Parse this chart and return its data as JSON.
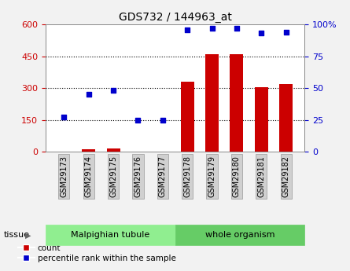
{
  "title": "GDS732 / 144963_at",
  "samples": [
    "GSM29173",
    "GSM29174",
    "GSM29175",
    "GSM29176",
    "GSM29177",
    "GSM29178",
    "GSM29179",
    "GSM29180",
    "GSM29181",
    "GSM29182"
  ],
  "counts": [
    2,
    10,
    14,
    2,
    2,
    330,
    460,
    460,
    305,
    318
  ],
  "percentiles": [
    27,
    45,
    48,
    25,
    25,
    96,
    97,
    97,
    93,
    94
  ],
  "tissue_groups": [
    {
      "label": "Malpighian tubule",
      "n": 5,
      "color": "#90ee90"
    },
    {
      "label": "whole organism",
      "n": 5,
      "color": "#66cc66"
    }
  ],
  "bar_color": "#cc0000",
  "scatter_color": "#0000cc",
  "left_ylim": [
    0,
    600
  ],
  "right_ylim": [
    0,
    100
  ],
  "left_yticks": [
    0,
    150,
    300,
    450,
    600
  ],
  "right_yticks": [
    0,
    25,
    50,
    75,
    100
  ],
  "left_ytick_labels": [
    "0",
    "150",
    "300",
    "450",
    "600"
  ],
  "right_ytick_labels": [
    "0",
    "25",
    "50",
    "75",
    "100%"
  ],
  "grid_lines": [
    150,
    300,
    450
  ],
  "legend_count_label": "count",
  "legend_percentile_label": "percentile rank within the sample",
  "tissue_label": "tissue",
  "background_color": "#f2f2f2",
  "plot_bg_color": "#ffffff"
}
